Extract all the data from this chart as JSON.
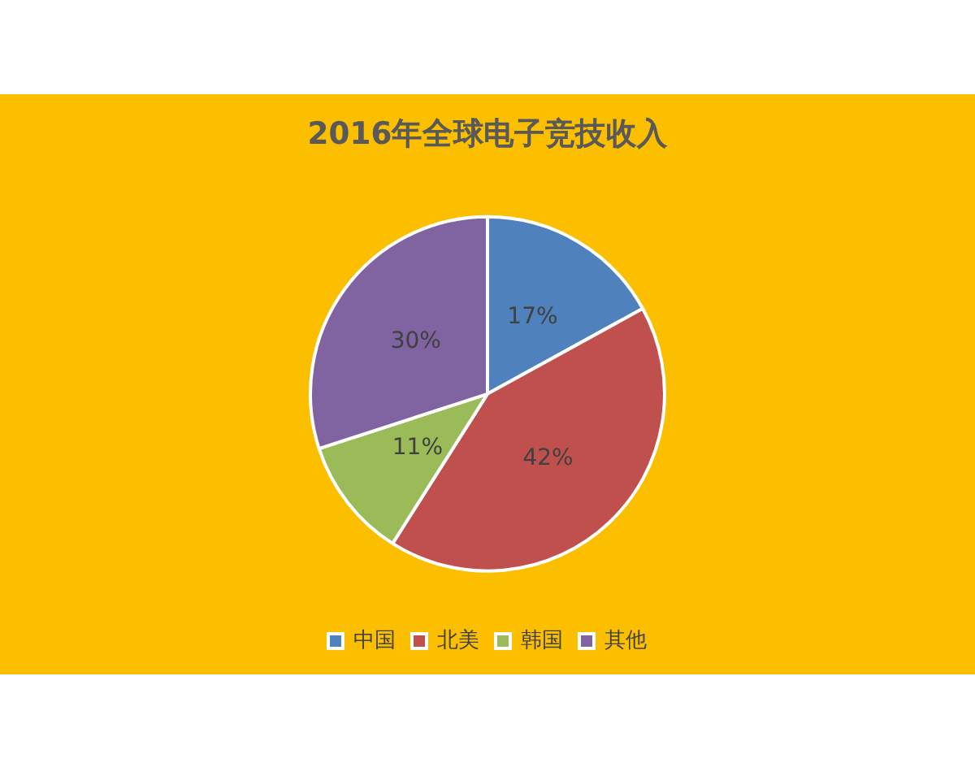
{
  "chart_data": {
    "type": "pie",
    "title": "2016年全球电子竞技收入",
    "categories": [
      "中国",
      "北美",
      "韩国",
      "其他"
    ],
    "values": [
      17,
      42,
      11,
      30
    ],
    "value_labels": [
      "17%",
      "42%",
      "11%",
      "30%"
    ],
    "colors": [
      "#4f81bd",
      "#c0504d",
      "#9bbb59",
      "#8064a2"
    ],
    "legend": "bottom"
  }
}
